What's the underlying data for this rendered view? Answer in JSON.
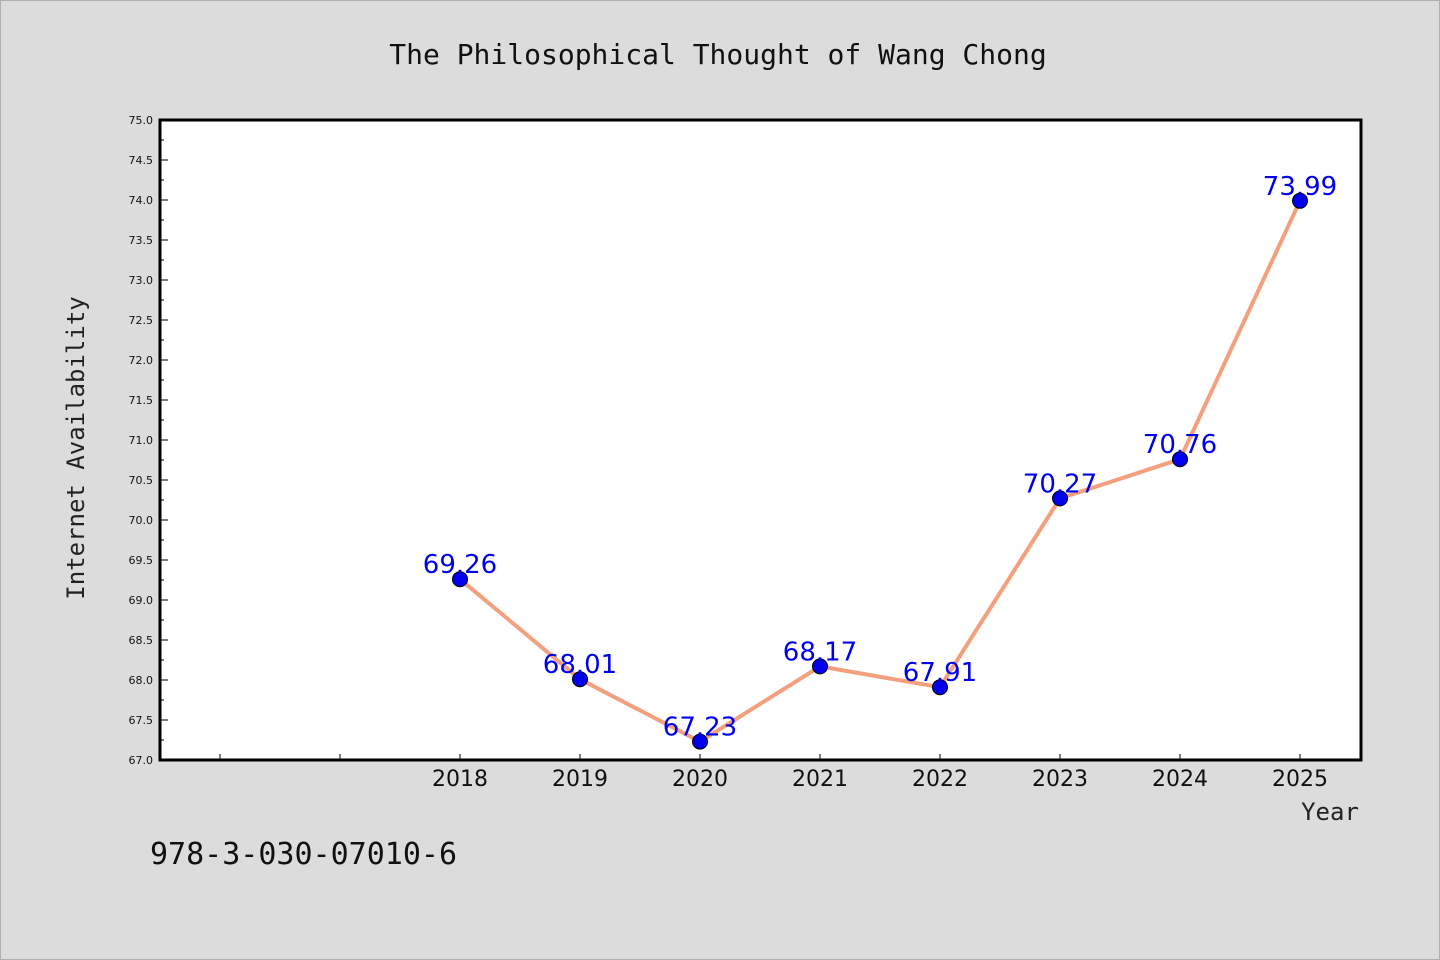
{
  "chart_data": {
    "type": "line",
    "title": "The Philosophical Thought of Wang Chong",
    "xlabel": "Year",
    "ylabel": "Internet Availability",
    "x": [
      "2018",
      "2019",
      "2020",
      "2021",
      "2022",
      "2023",
      "2024",
      "2025"
    ],
    "series": [
      {
        "values": [
          69.26,
          68.01,
          67.23,
          68.17,
          67.91,
          70.27,
          70.76,
          73.99
        ],
        "labels": [
          "69.26",
          "68.01",
          "67.23",
          "68.17",
          "67.91",
          "70.27",
          "70.76",
          "73.99"
        ]
      }
    ],
    "ylim": [
      67.0,
      75.0
    ],
    "yticks": [
      "67.0",
      "67.5",
      "68.0",
      "68.5",
      "69.0",
      "69.5",
      "70.0",
      "70.5",
      "71.0",
      "71.5",
      "72.0",
      "72.5",
      "73.0",
      "73.5",
      "74.0",
      "74.5",
      "75.0"
    ],
    "grid": false,
    "colors": {
      "line": "#f4a07e",
      "marker": "#0000ee",
      "label": "#0000ee"
    }
  },
  "footer": {
    "isbn": "978-3-030-07010-6"
  }
}
